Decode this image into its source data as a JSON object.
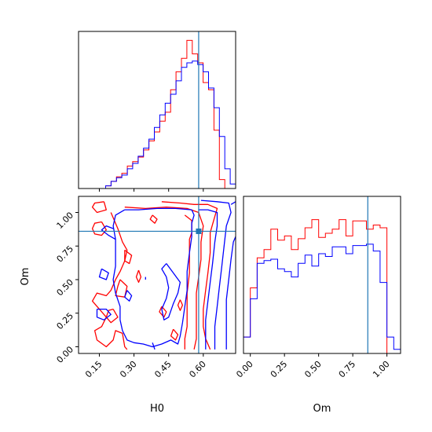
{
  "chart_data": {
    "type": "corner",
    "parameters": [
      "H0",
      "Om"
    ],
    "truths": {
      "H0": 0.58,
      "Om": 0.86
    },
    "truth_color": "#1f77b4",
    "colors": {
      "red": "#ff0000",
      "blue": "#0000ff"
    },
    "hist_H0": {
      "xlim": [
        0.06,
        0.74
      ],
      "ylim": [
        0,
        175
      ],
      "edges": [
        0.06,
        0.0834,
        0.1068,
        0.1303,
        0.1537,
        0.1772,
        0.2006,
        0.2241,
        0.2475,
        0.271,
        0.2944,
        0.3179,
        0.3413,
        0.3648,
        0.3882,
        0.4117,
        0.4351,
        0.4586,
        0.482,
        0.5055,
        0.5289,
        0.5524,
        0.5758,
        0.5993,
        0.6227,
        0.6462,
        0.6696,
        0.6931,
        0.7165,
        0.74
      ],
      "series": [
        {
          "color": "red",
          "values": [
            0,
            0,
            0,
            0,
            0,
            3,
            8,
            13,
            17,
            25,
            30,
            35,
            43,
            53,
            63,
            75,
            85,
            110,
            130,
            145,
            165,
            150,
            140,
            118,
            110,
            65,
            10,
            0,
            0
          ]
        },
        {
          "color": "blue",
          "values": [
            0,
            0,
            0,
            0,
            0,
            3,
            8,
            12,
            15,
            22,
            28,
            36,
            45,
            55,
            68,
            82,
            95,
            105,
            120,
            135,
            140,
            142,
            138,
            130,
            112,
            90,
            58,
            22,
            5
          ]
        }
      ]
    },
    "hist_Om": {
      "xlim": [
        -0.05,
        1.1
      ],
      "ylim": [
        0,
        115
      ],
      "edges": [
        -0.05,
        0.0,
        0.05,
        0.1,
        0.15,
        0.2,
        0.25,
        0.3,
        0.35,
        0.4,
        0.45,
        0.5,
        0.55,
        0.6,
        0.65,
        0.7,
        0.75,
        0.8,
        0.85,
        0.9,
        0.95,
        1.0,
        1.05,
        1.1
      ],
      "series": [
        {
          "color": "red",
          "values": [
            12,
            48,
            70,
            76,
            91,
            83,
            86,
            76,
            84,
            92,
            98,
            85,
            88,
            91,
            98,
            86,
            97,
            97,
            91,
            94,
            92,
            0,
            0
          ]
        },
        {
          "color": "blue",
          "values": [
            12,
            40,
            66,
            68,
            69,
            62,
            60,
            56,
            66,
            72,
            64,
            73,
            71,
            78,
            78,
            73,
            79,
            79,
            80,
            75,
            52,
            12,
            3
          ]
        }
      ]
    },
    "scatter_2d": {
      "xlim": [
        0.06,
        0.74
      ],
      "ylim": [
        -0.05,
        1.12
      ]
    },
    "ticks": {
      "H0": [
        "0.15",
        "0.30",
        "0.45",
        "0.60"
      ],
      "Om": [
        "0.00",
        "0.25",
        "0.50",
        "0.75",
        "1.00"
      ]
    },
    "xlabels": [
      "H0",
      "Om"
    ],
    "ylabels": [
      "Om"
    ],
    "contours": {
      "red": [
        [
          [
            0.42,
            1.08
          ],
          [
            0.5,
            1.07
          ],
          [
            0.56,
            1.06
          ],
          [
            0.62,
            1.06
          ],
          [
            0.66,
            1.03
          ],
          [
            0.65,
            0.97
          ],
          [
            0.63,
            0.85
          ],
          [
            0.63,
            0.7
          ],
          [
            0.62,
            0.55
          ],
          [
            0.61,
            0.42
          ],
          [
            0.6,
            0.28
          ],
          [
            0.6,
            0.15
          ],
          [
            0.61,
            0.06
          ],
          [
            0.63,
            -0.02
          ]
        ],
        [
          [
            0.26,
            1.04
          ],
          [
            0.35,
            1.03
          ],
          [
            0.44,
            1.04
          ],
          [
            0.53,
            1.03
          ],
          [
            0.58,
            1.0
          ],
          [
            0.6,
            0.9
          ],
          [
            0.59,
            0.78
          ],
          [
            0.59,
            0.65
          ],
          [
            0.58,
            0.52
          ],
          [
            0.57,
            0.4
          ],
          [
            0.57,
            0.28
          ],
          [
            0.57,
            0.15
          ],
          [
            0.57,
            0.06
          ],
          [
            0.56,
            -0.02
          ]
        ],
        [
          [
            0.52,
            0.98
          ],
          [
            0.55,
            0.94
          ],
          [
            0.55,
            0.85
          ],
          [
            0.54,
            0.8
          ],
          [
            0.54,
            0.7
          ],
          [
            0.54,
            0.55
          ],
          [
            0.53,
            0.4
          ],
          [
            0.53,
            0.28
          ],
          [
            0.53,
            0.15
          ],
          [
            0.52,
            0.06
          ],
          [
            0.52,
            -0.02
          ]
        ],
        [
          [
            0.17,
            1.08
          ],
          [
            0.18,
            1.02
          ],
          [
            0.14,
            1.0
          ],
          [
            0.12,
            1.04
          ],
          [
            0.13,
            1.07
          ],
          [
            0.17,
            1.08
          ]
        ],
        [
          [
            0.16,
            0.93
          ],
          [
            0.18,
            0.87
          ],
          [
            0.16,
            0.83
          ],
          [
            0.13,
            0.84
          ],
          [
            0.12,
            0.88
          ],
          [
            0.13,
            0.92
          ],
          [
            0.16,
            0.93
          ]
        ],
        [
          [
            0.2,
            1.0
          ],
          [
            0.23,
            0.88
          ],
          [
            0.25,
            0.78
          ],
          [
            0.27,
            0.72
          ],
          [
            0.26,
            0.64
          ],
          [
            0.24,
            0.56
          ],
          [
            0.22,
            0.5
          ],
          [
            0.2,
            0.42
          ],
          [
            0.18,
            0.38
          ],
          [
            0.14,
            0.4
          ],
          [
            0.12,
            0.34
          ],
          [
            0.15,
            0.28
          ],
          [
            0.18,
            0.22
          ],
          [
            0.16,
            0.15
          ],
          [
            0.13,
            0.12
          ],
          [
            0.14,
            0.05
          ],
          [
            0.18,
            0.0
          ],
          [
            0.21,
            0.05
          ],
          [
            0.22,
            0.12
          ],
          [
            0.25,
            0.1
          ],
          [
            0.26,
            0.0
          ],
          [
            0.27,
            -0.02
          ]
        ],
        [
          [
            0.24,
            0.5
          ],
          [
            0.27,
            0.45
          ],
          [
            0.26,
            0.37
          ],
          [
            0.22,
            0.38
          ],
          [
            0.23,
            0.45
          ],
          [
            0.24,
            0.5
          ]
        ],
        [
          [
            0.21,
            0.28
          ],
          [
            0.23,
            0.22
          ],
          [
            0.2,
            0.18
          ],
          [
            0.18,
            0.22
          ],
          [
            0.19,
            0.27
          ],
          [
            0.21,
            0.28
          ]
        ],
        [
          [
            0.26,
            0.72
          ],
          [
            0.29,
            0.68
          ],
          [
            0.28,
            0.62
          ],
          [
            0.26,
            0.64
          ],
          [
            0.26,
            0.72
          ]
        ],
        [
          [
            0.32,
            0.57
          ],
          [
            0.33,
            0.52
          ],
          [
            0.32,
            0.48
          ],
          [
            0.31,
            0.52
          ],
          [
            0.32,
            0.57
          ]
        ],
        [
          [
            0.38,
            0.98
          ],
          [
            0.4,
            0.95
          ],
          [
            0.39,
            0.92
          ],
          [
            0.37,
            0.95
          ],
          [
            0.38,
            0.98
          ]
        ],
        [
          [
            0.42,
            0.3
          ],
          [
            0.44,
            0.26
          ],
          [
            0.43,
            0.22
          ],
          [
            0.41,
            0.26
          ],
          [
            0.42,
            0.3
          ]
        ],
        [
          [
            0.47,
            0.13
          ],
          [
            0.49,
            0.09
          ],
          [
            0.48,
            0.05
          ],
          [
            0.46,
            0.08
          ],
          [
            0.47,
            0.13
          ]
        ],
        [
          [
            0.5,
            0.35
          ],
          [
            0.51,
            0.31
          ],
          [
            0.5,
            0.27
          ],
          [
            0.49,
            0.31
          ],
          [
            0.5,
            0.35
          ]
        ]
      ],
      "blue": [
        [
          [
            0.59,
            1.09
          ],
          [
            0.66,
            1.08
          ],
          [
            0.71,
            1.07
          ],
          [
            0.72,
            1.0
          ],
          [
            0.7,
            0.9
          ],
          [
            0.69,
            0.75
          ],
          [
            0.68,
            0.6
          ],
          [
            0.67,
            0.45
          ],
          [
            0.66,
            0.3
          ],
          [
            0.65,
            0.15
          ],
          [
            0.65,
            0.02
          ],
          [
            0.65,
            -0.02
          ]
        ],
        [
          [
            0.58,
            1.02
          ],
          [
            0.62,
            1.02
          ],
          [
            0.66,
            1.0
          ],
          [
            0.66,
            0.9
          ],
          [
            0.65,
            0.78
          ],
          [
            0.64,
            0.62
          ],
          [
            0.63,
            0.48
          ],
          [
            0.62,
            0.34
          ],
          [
            0.61,
            0.2
          ],
          [
            0.61,
            0.08
          ],
          [
            0.61,
            -0.02
          ]
        ],
        [
          [
            0.72,
            1.06
          ],
          [
            0.74,
            1.08
          ]
        ],
        [
          [
            0.74,
            0.82
          ],
          [
            0.73,
            0.78
          ],
          [
            0.72,
            0.65
          ],
          [
            0.71,
            0.5
          ],
          [
            0.7,
            0.35
          ],
          [
            0.7,
            0.2
          ],
          [
            0.7,
            0.05
          ],
          [
            0.7,
            -0.02
          ]
        ],
        [
          [
            0.26,
            1.02
          ],
          [
            0.32,
            1.02
          ],
          [
            0.4,
            1.03
          ],
          [
            0.48,
            1.03
          ],
          [
            0.55,
            1.02
          ],
          [
            0.56,
            0.98
          ],
          [
            0.55,
            0.92
          ],
          [
            0.55,
            0.82
          ],
          [
            0.54,
            0.7
          ],
          [
            0.53,
            0.56
          ],
          [
            0.53,
            0.42
          ],
          [
            0.52,
            0.3
          ],
          [
            0.51,
            0.18
          ],
          [
            0.5,
            0.08
          ],
          [
            0.49,
            0.02
          ],
          [
            0.46,
            0.05
          ],
          [
            0.42,
            0.02
          ],
          [
            0.38,
            0.0
          ],
          [
            0.34,
            0.02
          ],
          [
            0.3,
            0.03
          ],
          [
            0.27,
            0.05
          ],
          [
            0.25,
            0.12
          ],
          [
            0.24,
            0.2
          ],
          [
            0.24,
            0.3
          ],
          [
            0.22,
            0.4
          ],
          [
            0.21,
            0.5
          ],
          [
            0.22,
            0.6
          ],
          [
            0.22,
            0.7
          ],
          [
            0.22,
            0.8
          ],
          [
            0.21,
            0.9
          ],
          [
            0.22,
            0.98
          ],
          [
            0.26,
            1.02
          ]
        ],
        [
          [
            0.22,
            0.8
          ],
          [
            0.19,
            0.83
          ],
          [
            0.16,
            0.87
          ],
          [
            0.18,
            0.9
          ],
          [
            0.21,
            0.88
          ]
        ],
        [
          [
            0.44,
            0.62
          ],
          [
            0.47,
            0.55
          ],
          [
            0.5,
            0.48
          ],
          [
            0.49,
            0.4
          ],
          [
            0.47,
            0.32
          ],
          [
            0.45,
            0.22
          ],
          [
            0.43,
            0.2
          ],
          [
            0.42,
            0.28
          ],
          [
            0.44,
            0.36
          ],
          [
            0.45,
            0.44
          ],
          [
            0.44,
            0.52
          ],
          [
            0.42,
            0.58
          ],
          [
            0.44,
            0.62
          ]
        ],
        [
          [
            0.35,
            0.52
          ],
          [
            0.35,
            0.5
          ]
        ],
        [
          [
            0.14,
            0.28
          ],
          [
            0.18,
            0.28
          ],
          [
            0.2,
            0.24
          ],
          [
            0.17,
            0.2
          ],
          [
            0.14,
            0.22
          ],
          [
            0.14,
            0.28
          ]
        ],
        [
          [
            0.16,
            0.58
          ],
          [
            0.19,
            0.55
          ],
          [
            0.18,
            0.5
          ],
          [
            0.15,
            0.52
          ],
          [
            0.16,
            0.58
          ]
        ],
        [
          [
            0.38,
            0.03
          ],
          [
            0.39,
            -0.02
          ]
        ],
        [
          [
            0.27,
            0.42
          ],
          [
            0.29,
            0.38
          ],
          [
            0.28,
            0.34
          ],
          [
            0.26,
            0.37
          ],
          [
            0.27,
            0.42
          ]
        ]
      ]
    }
  }
}
